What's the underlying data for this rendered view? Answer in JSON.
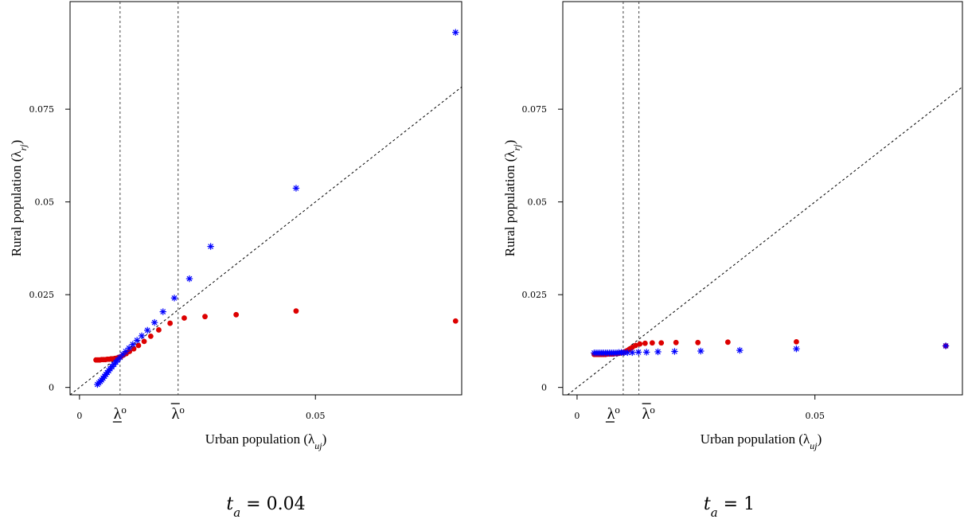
{
  "chart_data": [
    {
      "type": "scatter",
      "caption": "t_a = 0.04",
      "caption_var": "t",
      "caption_sub": "a",
      "caption_rest": " = 0.04",
      "xlabel": "Urban population (λ",
      "xlabel_sub": "uj",
      "xlabel_end": ")",
      "ylabel": "Rural population (λ",
      "ylabel_sub": "rj",
      "ylabel_end": ")",
      "xlim": [
        -0.002,
        0.081
      ],
      "ylim": [
        -0.002,
        0.104
      ],
      "x_ticks": [
        {
          "value": 0,
          "label": "0"
        },
        {
          "value": 0.05,
          "label": "0.05"
        }
      ],
      "y_ticks": [
        {
          "value": 0,
          "label": "0"
        },
        {
          "value": 0.025,
          "label": "0.025"
        },
        {
          "value": 0.05,
          "label": "0.05"
        },
        {
          "value": 0.075,
          "label": "0.075"
        }
      ],
      "vlines": [
        {
          "x": 0.0086,
          "label": "λ",
          "bar": "under"
        },
        {
          "x": 0.0209,
          "label": "λ",
          "bar": "over"
        }
      ],
      "diagonal": true,
      "series": [
        {
          "marker": "dot",
          "color": "#dd0000",
          "points": [
            [
              0.0035,
              0.0074
            ],
            [
              0.0039,
              0.0074
            ],
            [
              0.0043,
              0.0074
            ],
            [
              0.0047,
              0.0075
            ],
            [
              0.0051,
              0.0075
            ],
            [
              0.0055,
              0.0075
            ],
            [
              0.0059,
              0.0076
            ],
            [
              0.0063,
              0.0076
            ],
            [
              0.0067,
              0.0077
            ],
            [
              0.0071,
              0.0077
            ],
            [
              0.0075,
              0.0078
            ],
            [
              0.0079,
              0.0079
            ],
            [
              0.0083,
              0.0081
            ],
            [
              0.0088,
              0.0083
            ],
            [
              0.0093,
              0.0087
            ],
            [
              0.0099,
              0.0091
            ],
            [
              0.0106,
              0.0097
            ],
            [
              0.0115,
              0.0104
            ],
            [
              0.0125,
              0.0113
            ],
            [
              0.0137,
              0.0124
            ],
            [
              0.0151,
              0.0138
            ],
            [
              0.0168,
              0.0155
            ],
            [
              0.0192,
              0.0173
            ],
            [
              0.0222,
              0.0187
            ],
            [
              0.0266,
              0.0191
            ],
            [
              0.0332,
              0.0196
            ],
            [
              0.0459,
              0.0206
            ],
            [
              0.0797,
              0.0179
            ]
          ]
        },
        {
          "marker": "star",
          "color": "#0000ff",
          "points": [
            [
              0.0038,
              0.0008
            ],
            [
              0.0041,
              0.0012
            ],
            [
              0.0044,
              0.0016
            ],
            [
              0.0047,
              0.002
            ],
            [
              0.005,
              0.0025
            ],
            [
              0.0053,
              0.003
            ],
            [
              0.0056,
              0.0035
            ],
            [
              0.0059,
              0.004
            ],
            [
              0.0062,
              0.0045
            ],
            [
              0.0065,
              0.005
            ],
            [
              0.0069,
              0.0056
            ],
            [
              0.0073,
              0.0062
            ],
            [
              0.0077,
              0.0068
            ],
            [
              0.0081,
              0.0074
            ],
            [
              0.0086,
              0.0081
            ],
            [
              0.0092,
              0.0089
            ],
            [
              0.0098,
              0.0097
            ],
            [
              0.0105,
              0.0106
            ],
            [
              0.0113,
              0.0116
            ],
            [
              0.0122,
              0.0127
            ],
            [
              0.0132,
              0.0139
            ],
            [
              0.0144,
              0.0154
            ],
            [
              0.0159,
              0.0175
            ],
            [
              0.0177,
              0.0204
            ],
            [
              0.0201,
              0.0241
            ],
            [
              0.0233,
              0.0293
            ],
            [
              0.0278,
              0.038
            ],
            [
              0.0459,
              0.0537
            ],
            [
              0.0797,
              0.0957
            ]
          ]
        }
      ]
    },
    {
      "type": "scatter",
      "caption": "t_a = 1",
      "caption_var": "t",
      "caption_sub": "a",
      "caption_rest": " = 1",
      "xlabel": "Urban population (λ",
      "xlabel_sub": "uj",
      "xlabel_end": ")",
      "ylabel": "Rural population (λ",
      "ylabel_sub": "rj",
      "ylabel_end": ")",
      "xlim": [
        -0.003,
        0.081
      ],
      "ylim": [
        -0.002,
        0.104
      ],
      "x_ticks": [
        {
          "value": 0,
          "label": "0"
        },
        {
          "value": 0.05,
          "label": "0.05"
        }
      ],
      "y_ticks": [
        {
          "value": 0,
          "label": "0"
        },
        {
          "value": 0.025,
          "label": "0.025"
        },
        {
          "value": 0.05,
          "label": "0.05"
        },
        {
          "value": 0.075,
          "label": "0.075"
        }
      ],
      "vlines": [
        {
          "x": 0.0097,
          "label": "λ",
          "bar": "under"
        },
        {
          "x": 0.013,
          "label": "λ",
          "bar": "over"
        }
      ],
      "diagonal": true,
      "series": [
        {
          "marker": "dot",
          "color": "#dd0000",
          "points": [
            [
              0.0036,
              0.0089
            ],
            [
              0.004,
              0.0089
            ],
            [
              0.0044,
              0.0089
            ],
            [
              0.0048,
              0.0089
            ],
            [
              0.0052,
              0.0089
            ],
            [
              0.0056,
              0.0089
            ],
            [
              0.006,
              0.0089
            ],
            [
              0.0064,
              0.009
            ],
            [
              0.0068,
              0.009
            ],
            [
              0.0072,
              0.009
            ],
            [
              0.0076,
              0.009
            ],
            [
              0.008,
              0.0091
            ],
            [
              0.0084,
              0.0091
            ],
            [
              0.0088,
              0.0092
            ],
            [
              0.0092,
              0.0093
            ],
            [
              0.0096,
              0.0094
            ],
            [
              0.01,
              0.0096
            ],
            [
              0.0105,
              0.0099
            ],
            [
              0.011,
              0.0103
            ],
            [
              0.0116,
              0.0108
            ],
            [
              0.0123,
              0.0113
            ],
            [
              0.0132,
              0.0117
            ],
            [
              0.0143,
              0.0119
            ],
            [
              0.0158,
              0.012
            ],
            [
              0.0177,
              0.012
            ],
            [
              0.0208,
              0.0121
            ],
            [
              0.0254,
              0.0121
            ],
            [
              0.0317,
              0.0122
            ],
            [
              0.0461,
              0.0123
            ],
            [
              0.0775,
              0.0112
            ]
          ]
        },
        {
          "marker": "star",
          "color": "#0000ff",
          "points": [
            [
              0.0036,
              0.0093
            ],
            [
              0.004,
              0.0093
            ],
            [
              0.0044,
              0.0093
            ],
            [
              0.0048,
              0.0093
            ],
            [
              0.0052,
              0.0093
            ],
            [
              0.0056,
              0.0093
            ],
            [
              0.006,
              0.0093
            ],
            [
              0.0064,
              0.0093
            ],
            [
              0.0068,
              0.0093
            ],
            [
              0.0072,
              0.0093
            ],
            [
              0.0076,
              0.0093
            ],
            [
              0.008,
              0.0093
            ],
            [
              0.0084,
              0.0093
            ],
            [
              0.0088,
              0.0094
            ],
            [
              0.0093,
              0.0094
            ],
            [
              0.0099,
              0.0094
            ],
            [
              0.0106,
              0.0094
            ],
            [
              0.0116,
              0.0094
            ],
            [
              0.0129,
              0.0095
            ],
            [
              0.0146,
              0.0095
            ],
            [
              0.017,
              0.0096
            ],
            [
              0.0205,
              0.0097
            ],
            [
              0.026,
              0.0098
            ],
            [
              0.0342,
              0.01
            ],
            [
              0.0461,
              0.0104
            ],
            [
              0.0775,
              0.0112
            ]
          ]
        }
      ]
    }
  ]
}
